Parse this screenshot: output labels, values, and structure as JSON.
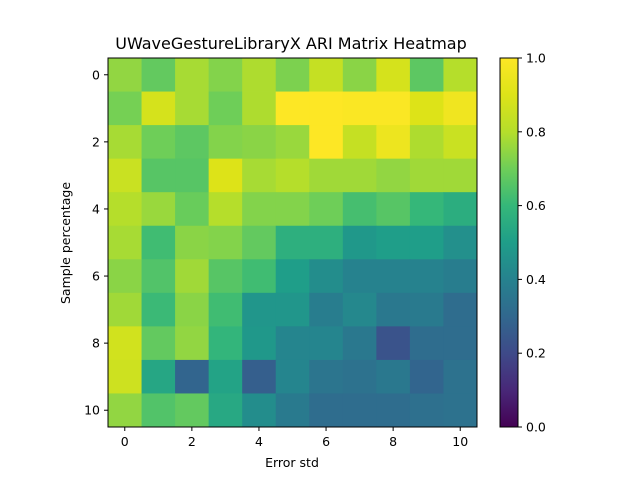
{
  "chart_data": {
    "type": "heatmap",
    "title": "UWaveGestureLibraryX ARI Matrix Heatmap",
    "xlabel": "Error std",
    "ylabel": "Sample percentage",
    "x_ticks": [
      0,
      2,
      4,
      6,
      8,
      10
    ],
    "y_ticks": [
      0,
      2,
      4,
      6,
      8,
      10
    ],
    "colormap": "viridis",
    "vmin": 0.0,
    "vmax": 1.0,
    "colorbar_ticks": [
      "0.0",
      "0.2",
      "0.4",
      "0.6",
      "0.8",
      "1.0"
    ],
    "grid": false,
    "rows": 11,
    "cols": 11,
    "values": [
      [
        0.75,
        0.68,
        0.78,
        0.73,
        0.79,
        0.72,
        0.84,
        0.74,
        0.88,
        0.67,
        0.8
      ],
      [
        0.71,
        0.88,
        0.78,
        0.7,
        0.79,
        1.0,
        1.0,
        0.99,
        0.99,
        0.9,
        0.96
      ],
      [
        0.78,
        0.7,
        0.67,
        0.73,
        0.74,
        0.76,
        1.0,
        0.84,
        0.95,
        0.79,
        0.85
      ],
      [
        0.85,
        0.66,
        0.66,
        0.9,
        0.78,
        0.8,
        0.77,
        0.77,
        0.75,
        0.77,
        0.77
      ],
      [
        0.8,
        0.76,
        0.69,
        0.8,
        0.73,
        0.73,
        0.7,
        0.63,
        0.66,
        0.6,
        0.56
      ],
      [
        0.78,
        0.62,
        0.74,
        0.73,
        0.68,
        0.57,
        0.57,
        0.48,
        0.5,
        0.5,
        0.45
      ],
      [
        0.74,
        0.65,
        0.77,
        0.66,
        0.62,
        0.5,
        0.44,
        0.4,
        0.4,
        0.4,
        0.38
      ],
      [
        0.77,
        0.61,
        0.74,
        0.62,
        0.47,
        0.47,
        0.38,
        0.42,
        0.36,
        0.37,
        0.32
      ],
      [
        0.87,
        0.68,
        0.75,
        0.59,
        0.48,
        0.41,
        0.41,
        0.36,
        0.23,
        0.32,
        0.32
      ],
      [
        0.86,
        0.53,
        0.29,
        0.52,
        0.27,
        0.41,
        0.35,
        0.34,
        0.36,
        0.29,
        0.34
      ],
      [
        0.75,
        0.65,
        0.68,
        0.54,
        0.44,
        0.37,
        0.32,
        0.32,
        0.32,
        0.33,
        0.34
      ]
    ]
  }
}
